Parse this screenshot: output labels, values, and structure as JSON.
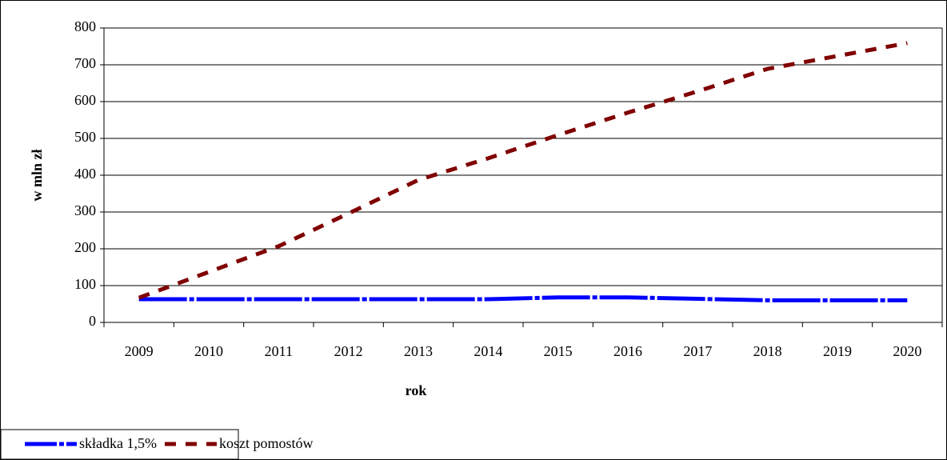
{
  "chart_data": {
    "type": "line",
    "x_label": "rok",
    "y_label": "w mln zł",
    "categories": [
      "2009",
      "2010",
      "2011",
      "2012",
      "2013",
      "2014",
      "2015",
      "2016",
      "2017",
      "2018",
      "2019",
      "2020"
    ],
    "series": [
      {
        "name": "składka 1,5%",
        "color": "#0000ff",
        "values": [
          63,
          63,
          63,
          63,
          63,
          63,
          68,
          68,
          64,
          60,
          60,
          60
        ]
      },
      {
        "name": "koszt pomostów",
        "color": "#800000",
        "values": [
          67,
          137,
          207,
          296,
          387,
          446,
          509,
          570,
          628,
          689,
          724,
          759
        ]
      }
    ],
    "ylim": [
      0,
      800
    ],
    "yticks": [
      0,
      100,
      200,
      300,
      400,
      500,
      600,
      700,
      800
    ],
    "grid": true,
    "legend": "bottom-left"
  }
}
